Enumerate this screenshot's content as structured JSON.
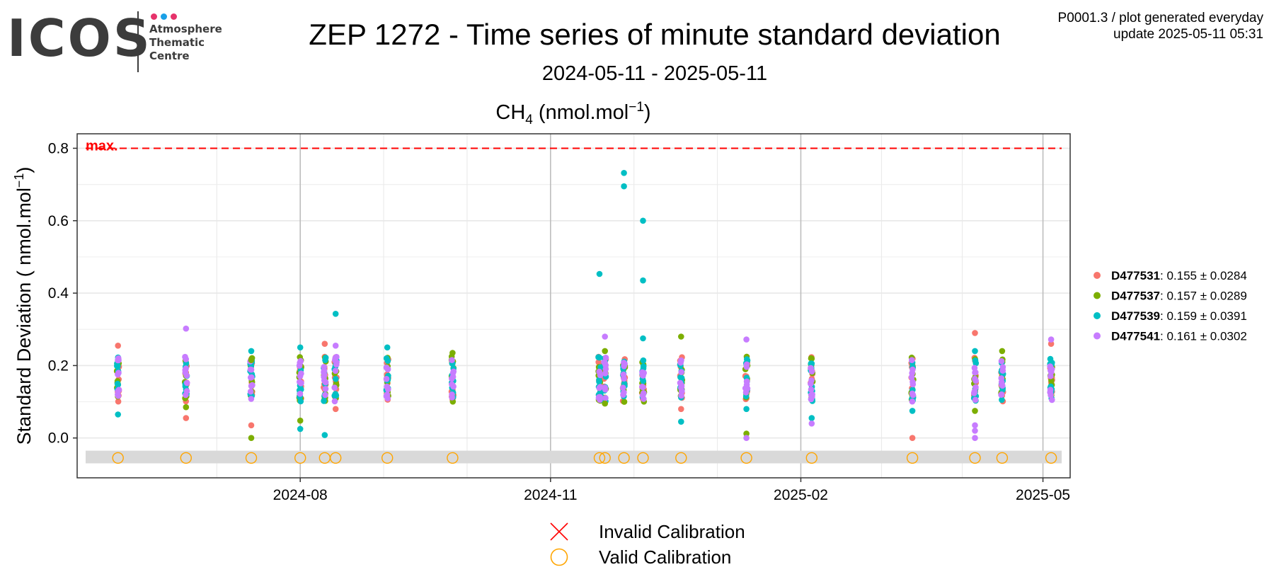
{
  "logo": {
    "text": "ICOS",
    "sub1": "Atmosphere",
    "sub2": "Thematic",
    "sub3": "Centre",
    "dot_colors": [
      "#e6336b",
      "#1aa0e6",
      "#e6336b"
    ]
  },
  "header": {
    "title": "ZEP 1272 - Time series of minute standard deviation",
    "subtitle": "2024-05-11 - 2025-05-11",
    "gen_line1": "P0001.3 / plot generated everyday",
    "gen_line2": "update  2025-05-11 05:31"
  },
  "chart_data": {
    "type": "scatter",
    "panel_title_main": "CH",
    "panel_title_sub": "4",
    "panel_title_rest": " (nmol.mol",
    "panel_title_sup": "−1",
    "panel_title_end": ")",
    "ylabel_main": "Standard Deviation ( nmol.mol",
    "ylabel_sup": "−1",
    "ylabel_end": ")",
    "x_range": [
      "2024-05-11",
      "2025-05-11"
    ],
    "ylim": [
      -0.11,
      0.84
    ],
    "y_ticks": [
      0.0,
      0.2,
      0.4,
      0.6,
      0.8
    ],
    "y_tick_labels": [
      "0.0",
      "0.2",
      "0.4",
      "0.6",
      "0.8"
    ],
    "x_ticks": [
      "2024-08-01",
      "2024-11-01",
      "2025-02-01",
      "2025-05-01"
    ],
    "x_tick_labels": [
      "2024-08",
      "2024-11",
      "2025-02",
      "2025-05"
    ],
    "max_line": {
      "value": 0.8,
      "label": "max.",
      "color": "#ff0000"
    },
    "grid": true,
    "legend_position": "right",
    "series": [
      {
        "name": "D477531",
        "stats": ": 0.155 ± 0.0284",
        "color": "#f8766d",
        "outliers": [
          [
            "2024-05-26",
            0.255
          ],
          [
            "2024-06-20",
            0.055
          ],
          [
            "2024-07-14",
            0.035
          ],
          [
            "2024-08-10",
            0.26
          ],
          [
            "2024-08-14",
            0.08
          ],
          [
            "2024-12-19",
            0.08
          ],
          [
            "2025-03-14",
            0.0
          ],
          [
            "2025-04-06",
            0.29
          ],
          [
            "2025-05-04",
            0.26
          ]
        ]
      },
      {
        "name": "D477537",
        "stats": ": 0.157 ± 0.0289",
        "color": "#7cae00",
        "outliers": [
          [
            "2024-06-20",
            0.085
          ],
          [
            "2024-07-14",
            0.0
          ],
          [
            "2024-07-14",
            0.215
          ],
          [
            "2024-08-01",
            0.048
          ],
          [
            "2024-09-26",
            0.235
          ],
          [
            "2024-11-21",
            0.24
          ],
          [
            "2024-11-21",
            0.095
          ],
          [
            "2024-12-19",
            0.28
          ],
          [
            "2025-01-12",
            0.012
          ],
          [
            "2025-04-06",
            0.075
          ],
          [
            "2025-04-16",
            0.24
          ]
        ]
      },
      {
        "name": "D477539",
        "stats": ": 0.159 ± 0.0391",
        "color": "#00bfc4",
        "outliers": [
          [
            "2024-05-26",
            0.065
          ],
          [
            "2024-07-14",
            0.24
          ],
          [
            "2024-08-01",
            0.25
          ],
          [
            "2024-08-01",
            0.025
          ],
          [
            "2024-08-10",
            0.008
          ],
          [
            "2024-08-14",
            0.343
          ],
          [
            "2024-09-02",
            0.25
          ],
          [
            "2024-11-19",
            0.453
          ],
          [
            "2024-11-28",
            0.732
          ],
          [
            "2024-11-28",
            0.695
          ],
          [
            "2024-12-05",
            0.6
          ],
          [
            "2024-12-05",
            0.435
          ],
          [
            "2024-12-05",
            0.275
          ],
          [
            "2024-12-19",
            0.045
          ],
          [
            "2025-01-12",
            0.08
          ],
          [
            "2025-02-05",
            0.055
          ],
          [
            "2025-03-14",
            0.075
          ],
          [
            "2025-04-06",
            0.24
          ]
        ]
      },
      {
        "name": "D477541",
        "stats": ": 0.161 ± 0.0302",
        "color": "#c77cff",
        "outliers": [
          [
            "2024-06-20",
            0.302
          ],
          [
            "2024-08-14",
            0.255
          ],
          [
            "2024-11-21",
            0.28
          ],
          [
            "2025-01-12",
            0.272
          ],
          [
            "2025-01-12",
            0.0
          ],
          [
            "2025-02-05",
            0.04
          ],
          [
            "2025-04-06",
            0.0
          ],
          [
            "2025-04-06",
            0.02
          ],
          [
            "2025-04-06",
            0.035
          ],
          [
            "2025-05-04",
            0.272
          ]
        ]
      }
    ],
    "calibration_dates": [
      "2024-05-26",
      "2024-06-20",
      "2024-07-14",
      "2024-08-01",
      "2024-08-10",
      "2024-08-14",
      "2024-09-02",
      "2024-09-26",
      "2024-11-19",
      "2024-11-21",
      "2024-11-28",
      "2024-12-05",
      "2024-12-19",
      "2025-01-12",
      "2025-02-05",
      "2025-03-14",
      "2025-04-06",
      "2025-04-16",
      "2025-05-04"
    ],
    "calibration_value": -0.055,
    "calibration_band": [
      -0.07,
      -0.035
    ],
    "calibration_legend": [
      {
        "label": "Invalid Calibration",
        "symbol": "cross",
        "color": "#ff0000"
      },
      {
        "label": "Valid Calibration",
        "symbol": "circle",
        "color": "#ffa500"
      }
    ]
  }
}
